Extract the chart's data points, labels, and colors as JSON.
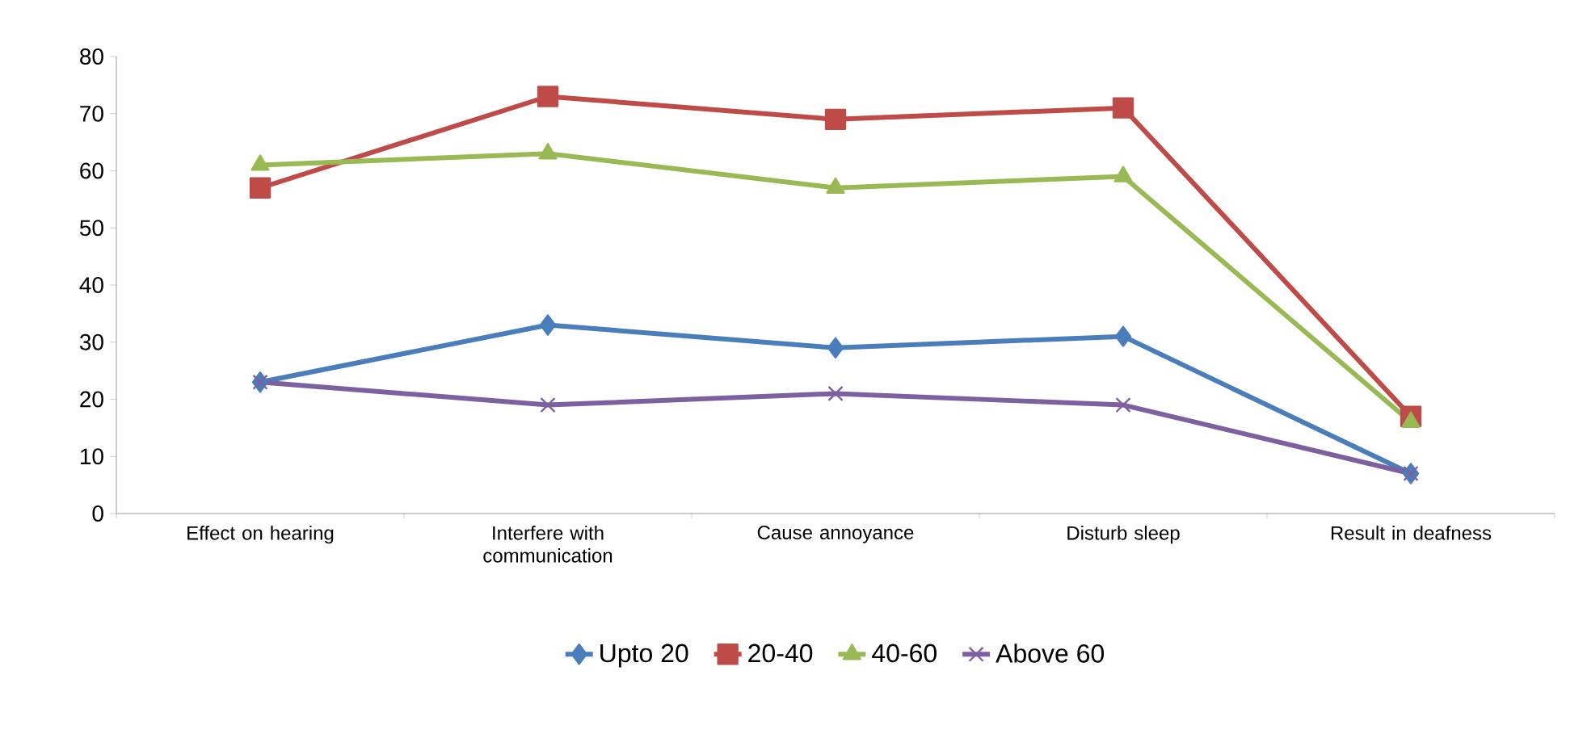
{
  "chart_data": {
    "type": "line",
    "categories": [
      "Effect on hearing",
      "Interfere with communication",
      "Cause annoyance",
      "Disturb sleep",
      "Result in deafness"
    ],
    "series": [
      {
        "name": "Upto 20",
        "color": "#4a7ebb",
        "marker": "diamond",
        "values": [
          23,
          33,
          29,
          31,
          7
        ]
      },
      {
        "name": "20-40",
        "color": "#be4b48",
        "marker": "square",
        "values": [
          57,
          73,
          69,
          71,
          17
        ]
      },
      {
        "name": "40-60",
        "color": "#98b954",
        "marker": "triangle",
        "values": [
          61,
          63,
          57,
          59,
          16
        ]
      },
      {
        "name": "Above 60",
        "color": "#7d60a0",
        "marker": "cross",
        "values": [
          23,
          19,
          21,
          19,
          7
        ]
      }
    ],
    "ylim": [
      0,
      80
    ],
    "yticks": [
      0,
      10,
      20,
      30,
      40,
      50,
      60,
      70,
      80
    ],
    "grid": false,
    "legend": "bottom",
    "line_style": "solid"
  }
}
